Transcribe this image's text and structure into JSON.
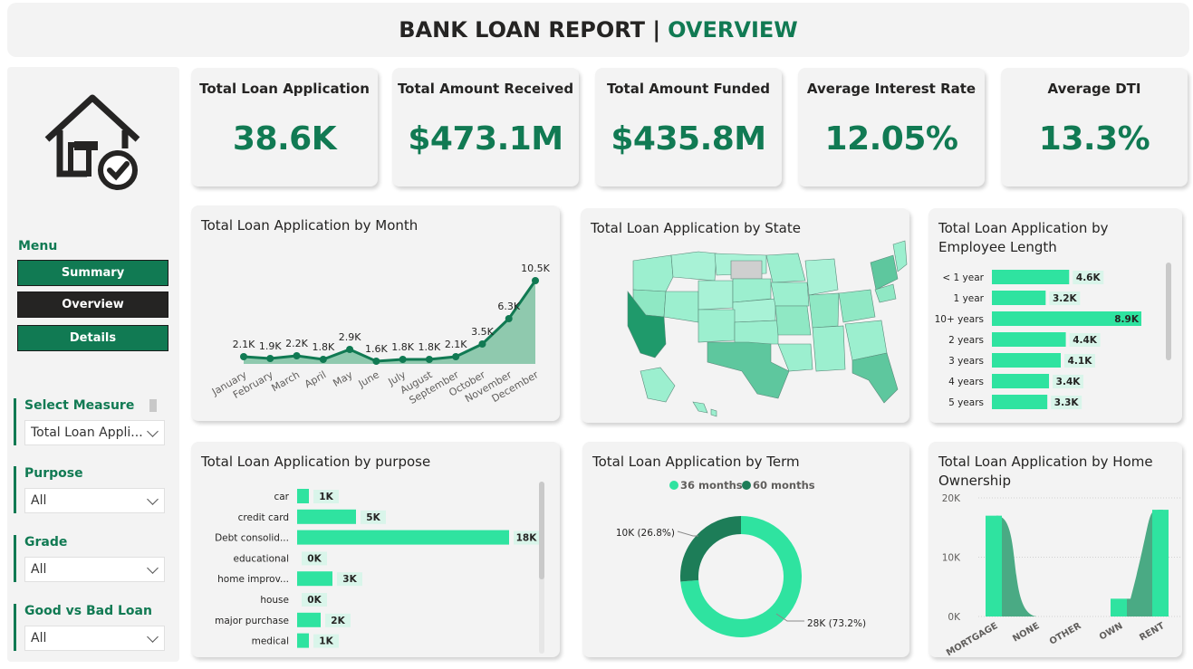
{
  "header": {
    "title": "BANK LOAN REPORT |",
    "subtitle": "OVERVIEW"
  },
  "colors": {
    "accent": "#117a53",
    "mint": "#2fe3a0",
    "dark": "#252423"
  },
  "sidebar": {
    "logo_icon": "house-check-icon",
    "menu_title": "Menu",
    "menu": [
      {
        "label": "Summary"
      },
      {
        "label": "Overview"
      },
      {
        "label": "Details"
      }
    ],
    "slicers": [
      {
        "title": "Select Measure",
        "value": "Total Loan Appli..."
      },
      {
        "title": "Purpose",
        "value": "All"
      },
      {
        "title": "Grade",
        "value": "All"
      },
      {
        "title": "Good vs Bad Loan",
        "value": "All"
      }
    ]
  },
  "kpis": [
    {
      "label": "Total Loan Application",
      "value": "38.6K"
    },
    {
      "label": "Total Amount Received",
      "value": "$473.1M"
    },
    {
      "label": "Total Amount Funded",
      "value": "$435.8M"
    },
    {
      "label": "Average Interest Rate",
      "value": "12.05%"
    },
    {
      "label": "Average DTI",
      "value": "13.3%"
    }
  ],
  "panels": {
    "month": "Total Loan Application by Month",
    "state": "Total Loan Application by State",
    "emp": "Total Loan Application by Employee Length",
    "purpose": "Total Loan Application by purpose",
    "term": "Total Loan Application by Term",
    "home": "Total Loan Application by Home Ownership"
  },
  "chart_data": [
    {
      "type": "area",
      "categories": [
        "January",
        "February",
        "March",
        "April",
        "May",
        "June",
        "July",
        "August",
        "September",
        "October",
        "November",
        "December"
      ],
      "values": [
        2.1,
        1.9,
        2.2,
        1.8,
        2.9,
        1.6,
        1.8,
        1.8,
        2.1,
        3.5,
        6.3,
        10.5
      ],
      "labels": [
        "2.1K",
        "1.9K",
        "2.2K",
        "1.8K",
        "2.9K",
        "1.6K",
        "1.8K",
        "1.8K",
        "2.1K",
        "3.5K",
        "6.3K",
        "10.5K"
      ]
    },
    {
      "type": "bar",
      "orientation": "horizontal",
      "categories": [
        "< 1 year",
        "1 year",
        "10+ years",
        "2 years",
        "3 years",
        "4 years",
        "5 years"
      ],
      "values": [
        4.6,
        3.2,
        8.9,
        4.4,
        4.1,
        3.4,
        3.3
      ],
      "labels": [
        "4.6K",
        "3.2K",
        "8.9K",
        "4.4K",
        "4.1K",
        "3.4K",
        "3.3K"
      ]
    },
    {
      "type": "bar",
      "orientation": "horizontal",
      "categories": [
        "car",
        "credit card",
        "Debt consolid...",
        "educational",
        "home improv...",
        "house",
        "major purchase",
        "medical"
      ],
      "values": [
        1,
        5,
        18,
        0,
        3,
        0,
        2,
        1
      ],
      "labels": [
        "1K",
        "5K",
        "18K",
        "0K",
        "3K",
        "0K",
        "2K",
        "1K"
      ]
    },
    {
      "type": "pie",
      "donut": true,
      "legend": [
        "36 months",
        "60 months"
      ],
      "values": [
        28,
        10
      ],
      "percent": [
        73.2,
        26.8
      ],
      "labels": [
        "28K (73.2%)",
        "10K (26.8%)"
      ]
    },
    {
      "type": "bar",
      "categories": [
        "MORTGAGE",
        "NONE",
        "OTHER",
        "OWN",
        "RENT"
      ],
      "values": [
        17,
        0,
        0,
        3,
        18
      ],
      "ylim": [
        0,
        20
      ],
      "yticks": [
        "0K",
        "10K",
        "20K"
      ]
    }
  ]
}
